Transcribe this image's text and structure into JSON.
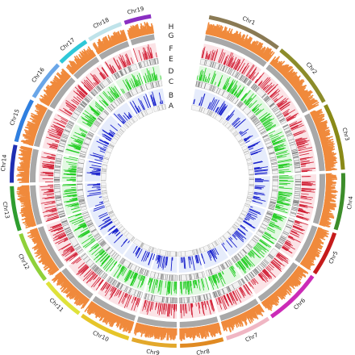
{
  "chromosomes": [
    {
      "name": "Chr1",
      "color": "#8a7a54"
    },
    {
      "name": "Chr2",
      "color": "#8c8c2a"
    },
    {
      "name": "Chr3",
      "color": "#8a8a17"
    },
    {
      "name": "Chr4",
      "color": "#3c8d2a"
    },
    {
      "name": "Chr5",
      "color": "#c61b1b"
    },
    {
      "name": "Chr6",
      "color": "#cc2bb7"
    },
    {
      "name": "Chr7",
      "color": "#f0b6c3"
    },
    {
      "name": "Chr8",
      "color": "#e08a22"
    },
    {
      "name": "Chr9",
      "color": "#e3a82b"
    },
    {
      "name": "Chr10",
      "color": "#e6c529"
    },
    {
      "name": "Chr11",
      "color": "#dfe23a"
    },
    {
      "name": "Chr12",
      "color": "#8fd13a"
    },
    {
      "name": "Chr13",
      "color": "#2f9d2f"
    },
    {
      "name": "Chr14",
      "color": "#1f2fb3"
    },
    {
      "name": "Chr15",
      "color": "#2f7fe0"
    },
    {
      "name": "Chr16",
      "color": "#6aa6e8"
    },
    {
      "name": "Chr17",
      "color": "#2fc8d8"
    },
    {
      "name": "Chr18",
      "color": "#bfe3ea"
    },
    {
      "name": "Chr19",
      "color": "#8a2fc2"
    }
  ],
  "tracks": [
    {
      "label": "H",
      "color": "#f08a3c"
    },
    {
      "label": "G",
      "color": "#a8a8a8"
    },
    {
      "label": "F",
      "color": "#d11e34"
    },
    {
      "label": "E",
      "color": "#7d7d7d"
    },
    {
      "label": "D",
      "color": "#22cc22"
    },
    {
      "label": "C",
      "color": "#8a8a8a"
    },
    {
      "label": "B",
      "color": "#1a22cc"
    },
    {
      "label": "A",
      "color": "#aaaaaa"
    }
  ]
}
